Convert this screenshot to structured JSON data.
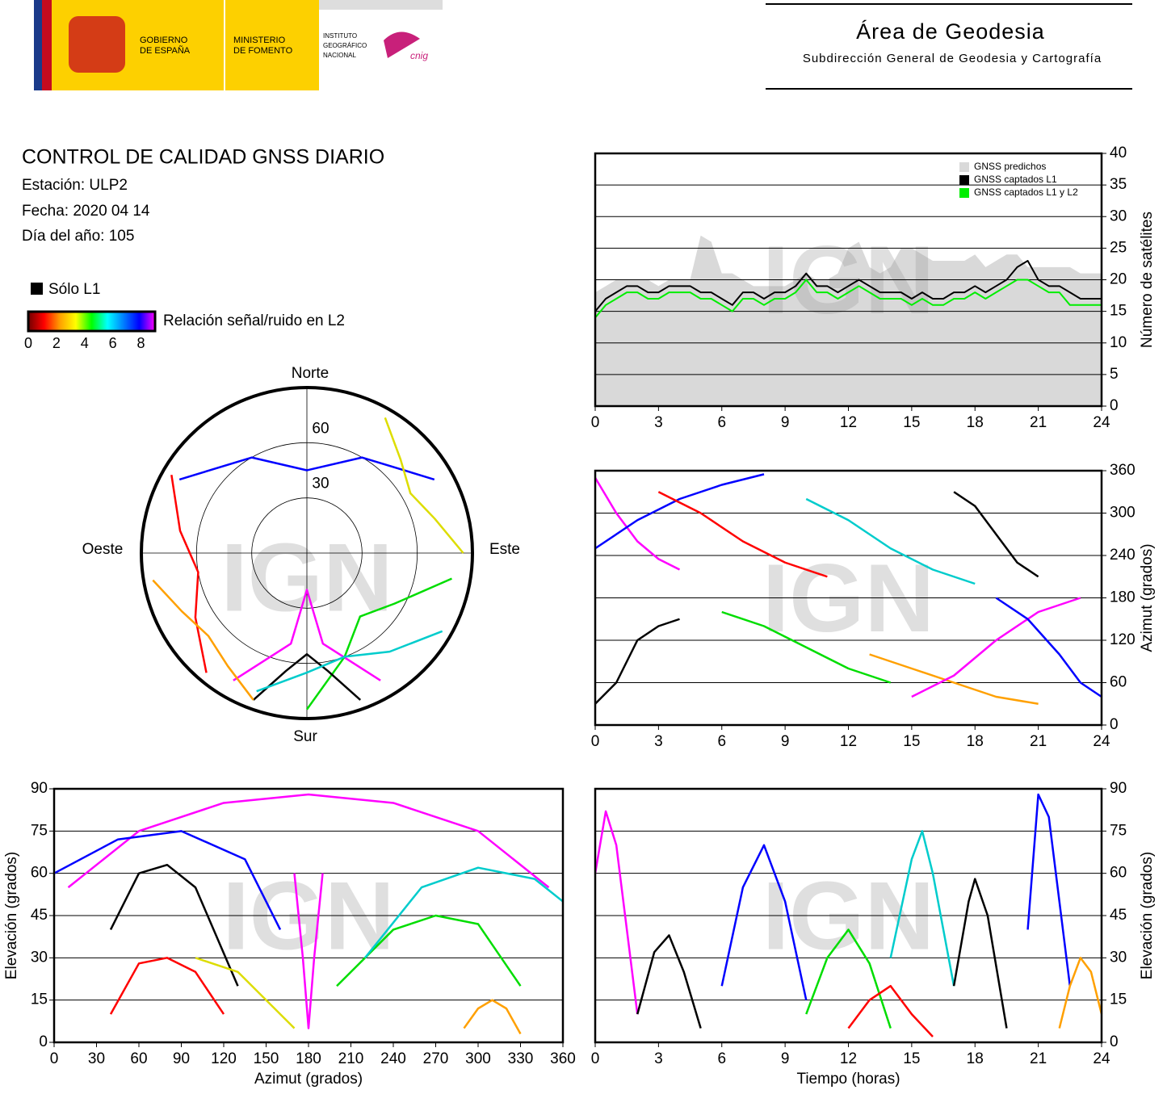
{
  "header": {
    "gobierno": [
      "GOBIERNO",
      "DE ESPAÑA"
    ],
    "ministerio": [
      "MINISTERIO",
      "DE FOMENTO"
    ],
    "instituto": [
      "INSTITUTO",
      "GEOGRÁFICO",
      "NACIONAL"
    ],
    "cnig": "cnig",
    "area": "Área de Geodesia",
    "subdirection": "Subdirección General de Geodesia y Cartografía"
  },
  "report": {
    "title": "CONTROL DE CALIDAD GNSS DIARIO",
    "lines": [
      "Estación: ULP2",
      "Fecha: 2020 04 14",
      "Día del año: 105"
    ]
  },
  "legend": {
    "l1_only": "Sólo L1",
    "l1_color": "#000000",
    "snr_label": "Relación señal/ruido en L2",
    "snr_lim": [
      0,
      9
    ],
    "snr_ticks": [
      0,
      2,
      4,
      6,
      8
    ],
    "snr_colors": [
      "#700000",
      "#ff0000",
      "#ffa000",
      "#ffff00",
      "#00ff00",
      "#00ffff",
      "#0080ff",
      "#0000ff",
      "#ff00ff"
    ]
  },
  "watermark": "IGN",
  "chart_data": [
    {
      "type": "line",
      "ylabel": "Número de satélites",
      "xlim": [
        0,
        24
      ],
      "xticks": [
        0,
        3,
        6,
        9,
        12,
        15,
        18,
        21,
        24
      ],
      "ylim": [
        0,
        40
      ],
      "yticks": [
        0,
        5,
        10,
        15,
        20,
        25,
        30,
        35,
        40
      ],
      "grid": true,
      "legend": "top-right",
      "x": [
        0,
        0.5,
        1,
        1.5,
        2,
        2.5,
        3,
        3.5,
        4,
        4.5,
        5,
        5.5,
        6,
        6.5,
        7,
        7.5,
        8,
        8.5,
        9,
        9.5,
        10,
        10.5,
        11,
        11.5,
        12,
        12.5,
        13,
        13.5,
        14,
        14.5,
        15,
        15.5,
        16,
        16.5,
        17,
        17.5,
        18,
        18.5,
        19,
        19.5,
        20,
        20.5,
        21,
        21.5,
        22,
        22.5,
        23,
        23.5,
        24
      ],
      "series": [
        {
          "name": "GNSS predichos",
          "color": "#d9d9d9",
          "fill": true,
          "values": [
            18,
            19,
            20,
            20,
            20,
            20,
            19,
            20,
            20,
            20,
            27,
            26,
            21,
            21,
            20,
            19,
            19,
            19,
            19,
            20,
            21,
            20,
            20,
            21,
            25,
            26,
            22,
            21,
            22,
            25,
            25,
            24,
            23,
            23,
            23,
            23,
            24,
            22,
            23,
            24,
            24,
            22,
            22,
            22,
            22,
            22,
            21,
            21,
            21
          ]
        },
        {
          "name": "GNSS captados L1",
          "color": "#000000",
          "fill": false,
          "values": [
            15,
            17,
            18,
            19,
            19,
            18,
            18,
            19,
            19,
            19,
            18,
            18,
            17,
            16,
            18,
            18,
            17,
            18,
            18,
            19,
            21,
            19,
            19,
            18,
            19,
            20,
            19,
            18,
            18,
            18,
            17,
            18,
            17,
            17,
            18,
            18,
            19,
            18,
            19,
            20,
            22,
            23,
            20,
            19,
            19,
            18,
            17,
            17,
            17
          ]
        },
        {
          "name": "GNSS captados L1 y L2",
          "color": "#00ee00",
          "fill": false,
          "values": [
            14,
            16,
            17,
            18,
            18,
            17,
            17,
            18,
            18,
            18,
            17,
            17,
            16,
            15,
            17,
            17,
            16,
            17,
            17,
            18,
            20,
            18,
            18,
            17,
            18,
            19,
            18,
            17,
            17,
            17,
            16,
            17,
            16,
            16,
            17,
            17,
            18,
            17,
            18,
            19,
            20,
            20,
            19,
            18,
            18,
            16,
            16,
            16,
            16
          ]
        }
      ]
    },
    {
      "type": "polar",
      "rlim": [
        90,
        0
      ],
      "rticks": [
        30,
        60
      ],
      "directions": {
        "north": "Norte",
        "south": "Sur",
        "east": "Este",
        "west": "Oeste"
      },
      "series": [
        {
          "color": "#ff00ff",
          "x": [
            150,
            170,
            180,
            190,
            210
          ],
          "values": [
            10,
            40,
            70,
            40,
            10
          ]
        },
        {
          "color": "#0000ff",
          "x": [
            300,
            330,
            0,
            30,
            60
          ],
          "values": [
            10,
            30,
            45,
            30,
            10
          ]
        },
        {
          "color": "#ff0000",
          "x": [
            220,
            240,
            260,
            280,
            300
          ],
          "values": [
            5,
            20,
            30,
            20,
            5
          ]
        },
        {
          "color": "#00dd00",
          "x": [
            100,
            120,
            140,
            160,
            180
          ],
          "values": [
            10,
            35,
            45,
            30,
            5
          ]
        },
        {
          "color": "#000000",
          "x": [
            200,
            190,
            180,
            170,
            160
          ],
          "values": [
            5,
            25,
            35,
            25,
            5
          ]
        },
        {
          "color": "#00cccc",
          "x": [
            120,
            140,
            160,
            180,
            200
          ],
          "values": [
            5,
            20,
            30,
            25,
            10
          ]
        },
        {
          "color": "#ffa000",
          "x": [
            200,
            215,
            230,
            245,
            260
          ],
          "values": [
            5,
            15,
            20,
            15,
            5
          ]
        },
        {
          "color": "#dddd00",
          "x": [
            30,
            45,
            60,
            75,
            90
          ],
          "values": [
            5,
            18,
            25,
            18,
            5
          ]
        }
      ]
    },
    {
      "type": "track",
      "ylabel": "Azimut (grados)",
      "xlim": [
        0,
        24
      ],
      "xticks": [
        0,
        3,
        6,
        9,
        12,
        15,
        18,
        21,
        24
      ],
      "ylim": [
        0,
        360
      ],
      "yticks": [
        0,
        60,
        120,
        180,
        240,
        300,
        360
      ],
      "grid": true,
      "series": [
        {
          "color": "#ff00ff",
          "x": [
            0,
            1,
            2,
            3,
            4
          ],
          "values": [
            350,
            300,
            260,
            235,
            220
          ]
        },
        {
          "color": "#0000ff",
          "x": [
            0,
            2,
            4,
            6,
            8
          ],
          "values": [
            250,
            290,
            320,
            340,
            355
          ]
        },
        {
          "color": "#ff0000",
          "x": [
            3,
            5,
            7,
            9,
            11
          ],
          "values": [
            330,
            300,
            260,
            230,
            210
          ]
        },
        {
          "color": "#00dd00",
          "x": [
            6,
            8,
            10,
            12,
            14
          ],
          "values": [
            160,
            140,
            110,
            80,
            60
          ]
        },
        {
          "color": "#00cccc",
          "x": [
            10,
            12,
            14,
            16,
            18
          ],
          "values": [
            320,
            290,
            250,
            220,
            200
          ]
        },
        {
          "color": "#000000",
          "x": [
            17,
            18,
            19,
            20,
            21
          ],
          "values": [
            330,
            310,
            270,
            230,
            210
          ]
        },
        {
          "color": "#ffa000",
          "x": [
            13,
            15,
            17,
            19,
            21
          ],
          "values": [
            100,
            80,
            60,
            40,
            30
          ]
        },
        {
          "color": "#ff00ff",
          "x": [
            15,
            17,
            19,
            21,
            23
          ],
          "values": [
            40,
            70,
            120,
            160,
            180
          ]
        },
        {
          "color": "#0000ff",
          "x": [
            19,
            20.5,
            22,
            23,
            24
          ],
          "values": [
            180,
            150,
            100,
            60,
            40
          ]
        },
        {
          "color": "#000000",
          "x": [
            0,
            1,
            2,
            3,
            4
          ],
          "values": [
            30,
            60,
            120,
            140,
            150
          ]
        }
      ]
    },
    {
      "type": "track",
      "xlabel": "Azimut (grados)",
      "ylabel": "Elevación (grados)",
      "xlim": [
        0,
        360
      ],
      "xticks": [
        0,
        30,
        60,
        90,
        120,
        150,
        180,
        210,
        240,
        270,
        300,
        330,
        360
      ],
      "ylim": [
        0,
        90
      ],
      "yticks": [
        0,
        15,
        30,
        45,
        60,
        75,
        90
      ],
      "grid": true,
      "series": [
        {
          "color": "#ff00ff",
          "x": [
            10,
            60,
            120,
            180,
            240,
            300,
            350
          ],
          "values": [
            55,
            75,
            85,
            88,
            85,
            75,
            55
          ]
        },
        {
          "color": "#000000",
          "x": [
            40,
            60,
            80,
            100,
            130
          ],
          "values": [
            40,
            60,
            63,
            55,
            20
          ]
        },
        {
          "color": "#0000ff",
          "x": [
            0,
            45,
            90,
            135,
            160
          ],
          "values": [
            60,
            72,
            75,
            65,
            40
          ]
        },
        {
          "color": "#00dd00",
          "x": [
            200,
            240,
            270,
            300,
            330
          ],
          "values": [
            20,
            40,
            45,
            42,
            20
          ]
        },
        {
          "color": "#ff0000",
          "x": [
            40,
            60,
            80,
            100,
            120
          ],
          "values": [
            10,
            28,
            30,
            25,
            10
          ]
        },
        {
          "color": "#00cccc",
          "x": [
            220,
            260,
            300,
            340,
            360
          ],
          "values": [
            30,
            55,
            62,
            58,
            50
          ]
        },
        {
          "color": "#ffa000",
          "x": [
            290,
            300,
            310,
            320,
            330
          ],
          "values": [
            5,
            12,
            15,
            12,
            3
          ]
        },
        {
          "color": "#ff00ff",
          "x": [
            170,
            176,
            180,
            184,
            190
          ],
          "values": [
            60,
            30,
            5,
            30,
            60
          ]
        },
        {
          "color": "#dddd00",
          "x": [
            100,
            130,
            160,
            170
          ],
          "values": [
            30,
            25,
            10,
            5
          ]
        }
      ]
    },
    {
      "type": "track",
      "xlabel": "Tiempo (horas)",
      "ylabel": "Elevación (grados)",
      "xlim": [
        0,
        24
      ],
      "xticks": [
        0,
        3,
        6,
        9,
        12,
        15,
        18,
        21,
        24
      ],
      "ylim": [
        0,
        90
      ],
      "yticks": [
        0,
        15,
        30,
        45,
        60,
        75,
        90
      ],
      "grid": true,
      "series": [
        {
          "color": "#ff00ff",
          "x": [
            0,
            0.5,
            1,
            1.5,
            2
          ],
          "values": [
            60,
            82,
            70,
            40,
            10
          ]
        },
        {
          "color": "#0000ff",
          "x": [
            6,
            7,
            8,
            9,
            10
          ],
          "values": [
            20,
            55,
            70,
            50,
            15
          ]
        },
        {
          "color": "#000000",
          "x": [
            2,
            2.8,
            3.5,
            4.2,
            5
          ],
          "values": [
            10,
            32,
            38,
            25,
            5
          ]
        },
        {
          "color": "#00dd00",
          "x": [
            10,
            11,
            12,
            13,
            14
          ],
          "values": [
            10,
            30,
            40,
            28,
            5
          ]
        },
        {
          "color": "#ff0000",
          "x": [
            12,
            13,
            14,
            15,
            16
          ],
          "values": [
            5,
            15,
            20,
            10,
            2
          ]
        },
        {
          "color": "#00cccc",
          "x": [
            14,
            15,
            15.5,
            16,
            17
          ],
          "values": [
            30,
            65,
            75,
            60,
            20
          ]
        },
        {
          "color": "#000000",
          "x": [
            17,
            17.7,
            18,
            18.6,
            19.5
          ],
          "values": [
            20,
            50,
            58,
            45,
            5
          ]
        },
        {
          "color": "#0000ff",
          "x": [
            20.5,
            21,
            21.5,
            22,
            22.5
          ],
          "values": [
            40,
            88,
            80,
            50,
            20
          ]
        },
        {
          "color": "#ffa000",
          "x": [
            22,
            22.5,
            23,
            23.5,
            24
          ],
          "values": [
            5,
            20,
            30,
            25,
            10
          ]
        }
      ]
    }
  ]
}
